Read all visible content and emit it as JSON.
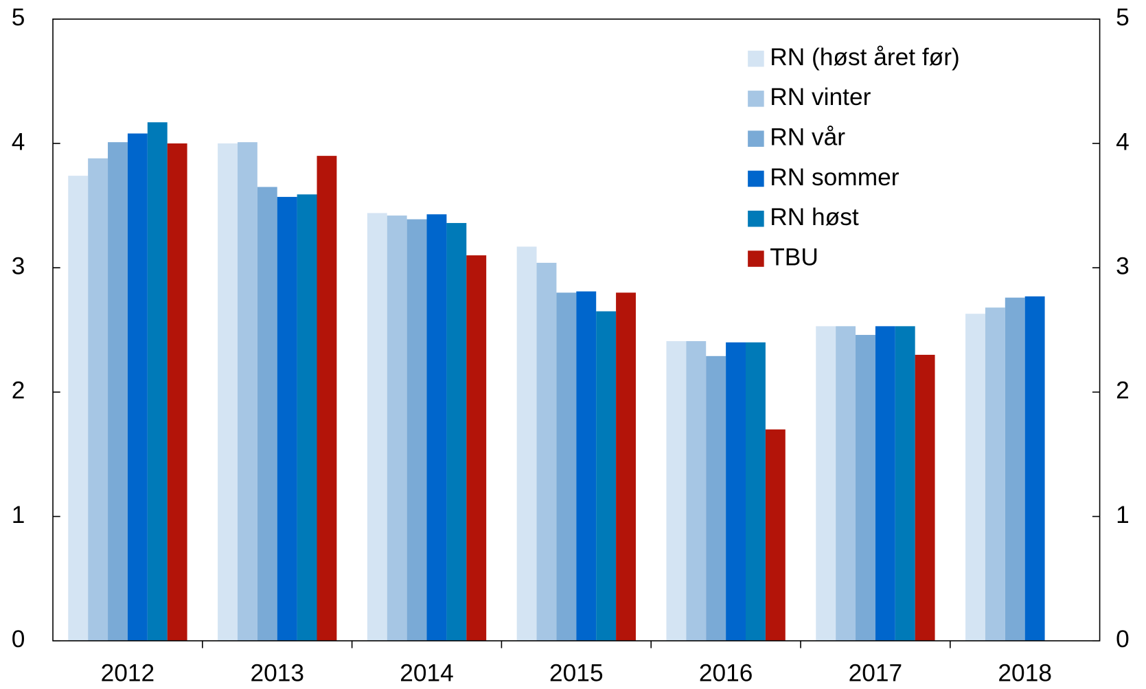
{
  "chart_data": {
    "type": "bar",
    "categories": [
      "2012",
      "2013",
      "2014",
      "2015",
      "2016",
      "2017",
      "2018"
    ],
    "series": [
      {
        "name": "RN (høst året før)",
        "color": "#d4e4f3",
        "values": [
          3.74,
          4.0,
          3.44,
          3.17,
          2.41,
          2.53,
          2.63
        ]
      },
      {
        "name": "RN vinter",
        "color": "#a6c6e4",
        "values": [
          3.88,
          4.01,
          3.42,
          3.04,
          2.41,
          2.53,
          2.68
        ]
      },
      {
        "name": "RN vår",
        "color": "#7aaad6",
        "values": [
          4.01,
          3.65,
          3.39,
          2.8,
          2.29,
          2.46,
          2.76
        ]
      },
      {
        "name": "RN sommer",
        "color": "#0066cc",
        "values": [
          4.08,
          3.57,
          3.43,
          2.81,
          2.4,
          2.53,
          2.77
        ]
      },
      {
        "name": "RN høst",
        "color": "#007ab8",
        "values": [
          4.17,
          3.59,
          3.36,
          2.65,
          2.4,
          2.53,
          null
        ]
      },
      {
        "name": "TBU",
        "color": "#b31409",
        "values": [
          4.0,
          3.9,
          3.1,
          2.8,
          1.7,
          2.3,
          null
        ]
      }
    ],
    "ylim": [
      0,
      5
    ],
    "yticks": [
      0,
      1,
      2,
      3,
      4,
      5
    ],
    "y2lim": [
      0,
      5
    ],
    "y2ticks": [
      0,
      1,
      2,
      3,
      4,
      5
    ],
    "legend": "upper right"
  }
}
